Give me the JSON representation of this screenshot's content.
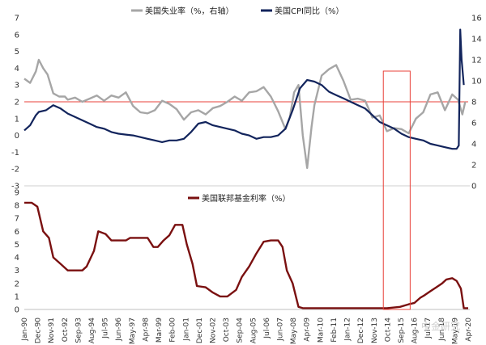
{
  "chart_data": [
    {
      "type": "line",
      "panel": "top",
      "title": "",
      "ylim": [
        -3,
        7
      ],
      "y2lim": [
        0,
        16
      ],
      "yticks": [
        "7",
        "6",
        "5",
        "4",
        "3",
        "2",
        "1",
        "0",
        "-1",
        "-2",
        "-3"
      ],
      "y2ticks": [
        "16",
        "14",
        "12",
        "10",
        "8",
        "6",
        "4",
        "2",
        "0"
      ],
      "reference_line": {
        "axis": "left",
        "value": 2,
        "color": "#e8423a"
      },
      "series": [
        {
          "name": "美国失业率（%，右轴）",
          "axis": "right",
          "color": "#a6a6a6",
          "x": [
            1990.0,
            1990.4,
            1990.8,
            1991.0,
            1991.3,
            1991.6,
            1992.0,
            1992.4,
            1992.8,
            1993.0,
            1993.5,
            1994.0,
            1994.5,
            1995.0,
            1995.5,
            1996.0,
            1996.5,
            1997.0,
            1997.5,
            1998.0,
            1998.5,
            1999.0,
            1999.5,
            2000.0,
            2000.5,
            2001.0,
            2001.5,
            2002.0,
            2002.5,
            2003.0,
            2003.5,
            2004.0,
            2004.5,
            2005.0,
            2005.5,
            2006.0,
            2006.5,
            2007.0,
            2007.5,
            2008.0,
            2008.3,
            2008.6,
            2008.9,
            2009.2,
            2009.5,
            2009.8,
            2010.0,
            2010.5,
            2011.0,
            2011.5,
            2012.0,
            2012.5,
            2013.0,
            2013.5,
            2014.0,
            2014.5,
            2015.0,
            2015.5,
            2016.0,
            2016.5,
            2017.0,
            2017.5,
            2018.0,
            2018.5,
            2019.0,
            2019.5,
            2019.9,
            2020.2,
            2020.4
          ],
          "values": [
            10.2,
            9.8,
            10.9,
            12.0,
            11.2,
            10.6,
            8.8,
            8.5,
            8.5,
            8.2,
            8.4,
            8.0,
            8.3,
            8.6,
            8.1,
            8.6,
            8.4,
            8.9,
            7.6,
            7.0,
            6.9,
            7.2,
            8.1,
            7.8,
            7.3,
            6.3,
            7.0,
            7.2,
            6.8,
            7.4,
            7.6,
            8.0,
            8.5,
            8.1,
            8.9,
            9.0,
            9.4,
            8.5,
            7.1,
            5.4,
            6.5,
            8.9,
            9.6,
            4.8,
            1.7,
            5.6,
            7.7,
            10.5,
            11.1,
            11.5,
            10.0,
            8.2,
            8.3,
            8.1,
            6.5,
            6.7,
            5.2,
            5.5,
            5.4,
            5.0,
            6.4,
            7.0,
            8.7,
            8.9,
            7.2,
            8.7,
            8.2,
            6.8,
            8.0
          ]
        },
        {
          "name": "美国CPI同比（%）",
          "axis": "left",
          "color": "#12245c",
          "x": [
            1990.0,
            1990.4,
            1990.8,
            1991.0,
            1991.5,
            1992.0,
            1992.5,
            1993.0,
            1993.5,
            1994.0,
            1994.5,
            1995.0,
            1995.5,
            1996.0,
            1996.5,
            1997.0,
            1997.5,
            1998.0,
            1998.5,
            1999.0,
            1999.5,
            2000.0,
            2000.5,
            2001.0,
            2001.5,
            2002.0,
            2002.5,
            2003.0,
            2003.5,
            2004.0,
            2004.5,
            2005.0,
            2005.5,
            2006.0,
            2006.5,
            2007.0,
            2007.5,
            2008.0,
            2008.5,
            2009.0,
            2009.5,
            2010.0,
            2010.5,
            2011.0,
            2011.5,
            2012.0,
            2012.5,
            2013.0,
            2013.5,
            2014.0,
            2014.5,
            2015.0,
            2015.5,
            2016.0,
            2016.5,
            2017.0,
            2017.5,
            2018.0,
            2018.5,
            2019.0,
            2019.5,
            2019.8,
            2019.95,
            2020.05,
            2020.15,
            2020.3
          ],
          "values": [
            0.3,
            0.6,
            1.2,
            1.4,
            1.5,
            1.8,
            1.6,
            1.3,
            1.1,
            0.9,
            0.7,
            0.5,
            0.4,
            0.2,
            0.1,
            0.05,
            0.0,
            -0.1,
            -0.2,
            -0.3,
            -0.4,
            -0.3,
            -0.3,
            -0.2,
            0.2,
            0.7,
            0.8,
            0.6,
            0.5,
            0.4,
            0.3,
            0.1,
            0.0,
            -0.2,
            -0.1,
            -0.1,
            0.0,
            0.4,
            1.5,
            2.8,
            3.3,
            3.2,
            3.0,
            2.6,
            2.4,
            2.2,
            2.0,
            1.8,
            1.6,
            1.2,
            0.8,
            0.6,
            0.4,
            0.1,
            -0.1,
            -0.2,
            -0.3,
            -0.5,
            -0.6,
            -0.7,
            -0.8,
            -0.8,
            -0.6,
            6.3,
            4.5,
            3.0
          ]
        }
      ]
    },
    {
      "type": "line",
      "panel": "bottom",
      "title": "",
      "ylim": [
        0,
        9
      ],
      "yticks": [
        "9",
        "8",
        "7",
        "6",
        "5",
        "4",
        "3",
        "2",
        "1",
        "0"
      ],
      "xticks": [
        "Jan-90",
        "Dec-90",
        "Nov-91",
        "Oct-92",
        "Sep-93",
        "Aug-94",
        "Jul-95",
        "Jun-96",
        "May-97",
        "Apr-98",
        "Mar-99",
        "Feb-00",
        "Jan-01",
        "Dec-01",
        "Nov-02",
        "Oct-03",
        "Sep-04",
        "Aug-05",
        "Jul-06",
        "Jun-07",
        "May-08",
        "Apr-09",
        "Mar-10",
        "Feb-11",
        "Jan-12",
        "Dec-12",
        "Nov-13",
        "Oct-14",
        "Sep-15",
        "Aug-16",
        "Jul-17",
        "Jun-18",
        "May-19",
        "Apr-20"
      ],
      "series": [
        {
          "name": "美国联邦基金利率（%）",
          "color": "#7a1010",
          "x": [
            1990.0,
            1990.5,
            1990.9,
            1991.3,
            1991.7,
            1992.0,
            1992.5,
            1993.0,
            1994.0,
            1994.3,
            1994.8,
            1995.1,
            1995.6,
            1996.0,
            1996.5,
            1997.0,
            1997.3,
            1998.0,
            1998.5,
            1998.9,
            1999.2,
            1999.6,
            2000.0,
            2000.4,
            2000.9,
            2001.2,
            2001.6,
            2001.9,
            2002.5,
            2003.0,
            2003.5,
            2004.0,
            2004.6,
            2005.0,
            2005.5,
            2006.0,
            2006.5,
            2007.0,
            2007.5,
            2007.8,
            2008.1,
            2008.5,
            2008.9,
            2009.2,
            2010.0,
            2011.0,
            2012.0,
            2013.0,
            2014.0,
            2015.0,
            2015.9,
            2016.5,
            2016.9,
            2017.3,
            2017.6,
            2018.0,
            2018.4,
            2018.8,
            2019.1,
            2019.5,
            2019.8,
            2020.1,
            2020.3,
            2020.6
          ],
          "values": [
            8.2,
            8.2,
            7.9,
            6.0,
            5.5,
            4.0,
            3.5,
            3.0,
            3.0,
            3.3,
            4.5,
            6.0,
            5.8,
            5.3,
            5.3,
            5.3,
            5.5,
            5.5,
            5.5,
            4.8,
            4.8,
            5.3,
            5.7,
            6.5,
            6.5,
            5.0,
            3.5,
            1.8,
            1.7,
            1.3,
            1.0,
            1.0,
            1.5,
            2.5,
            3.3,
            4.3,
            5.2,
            5.3,
            5.3,
            4.8,
            3.0,
            2.0,
            0.2,
            0.1,
            0.1,
            0.1,
            0.1,
            0.1,
            0.1,
            0.1,
            0.2,
            0.4,
            0.5,
            0.9,
            1.1,
            1.4,
            1.7,
            2.0,
            2.3,
            2.4,
            2.2,
            1.6,
            0.1,
            0.1
          ]
        }
      ]
    }
  ],
  "highlight_box": {
    "x_start": 2014.75,
    "x_end": 2016.6,
    "color": "#e8423a"
  },
  "watermark": {
    "text": "中金研究"
  }
}
